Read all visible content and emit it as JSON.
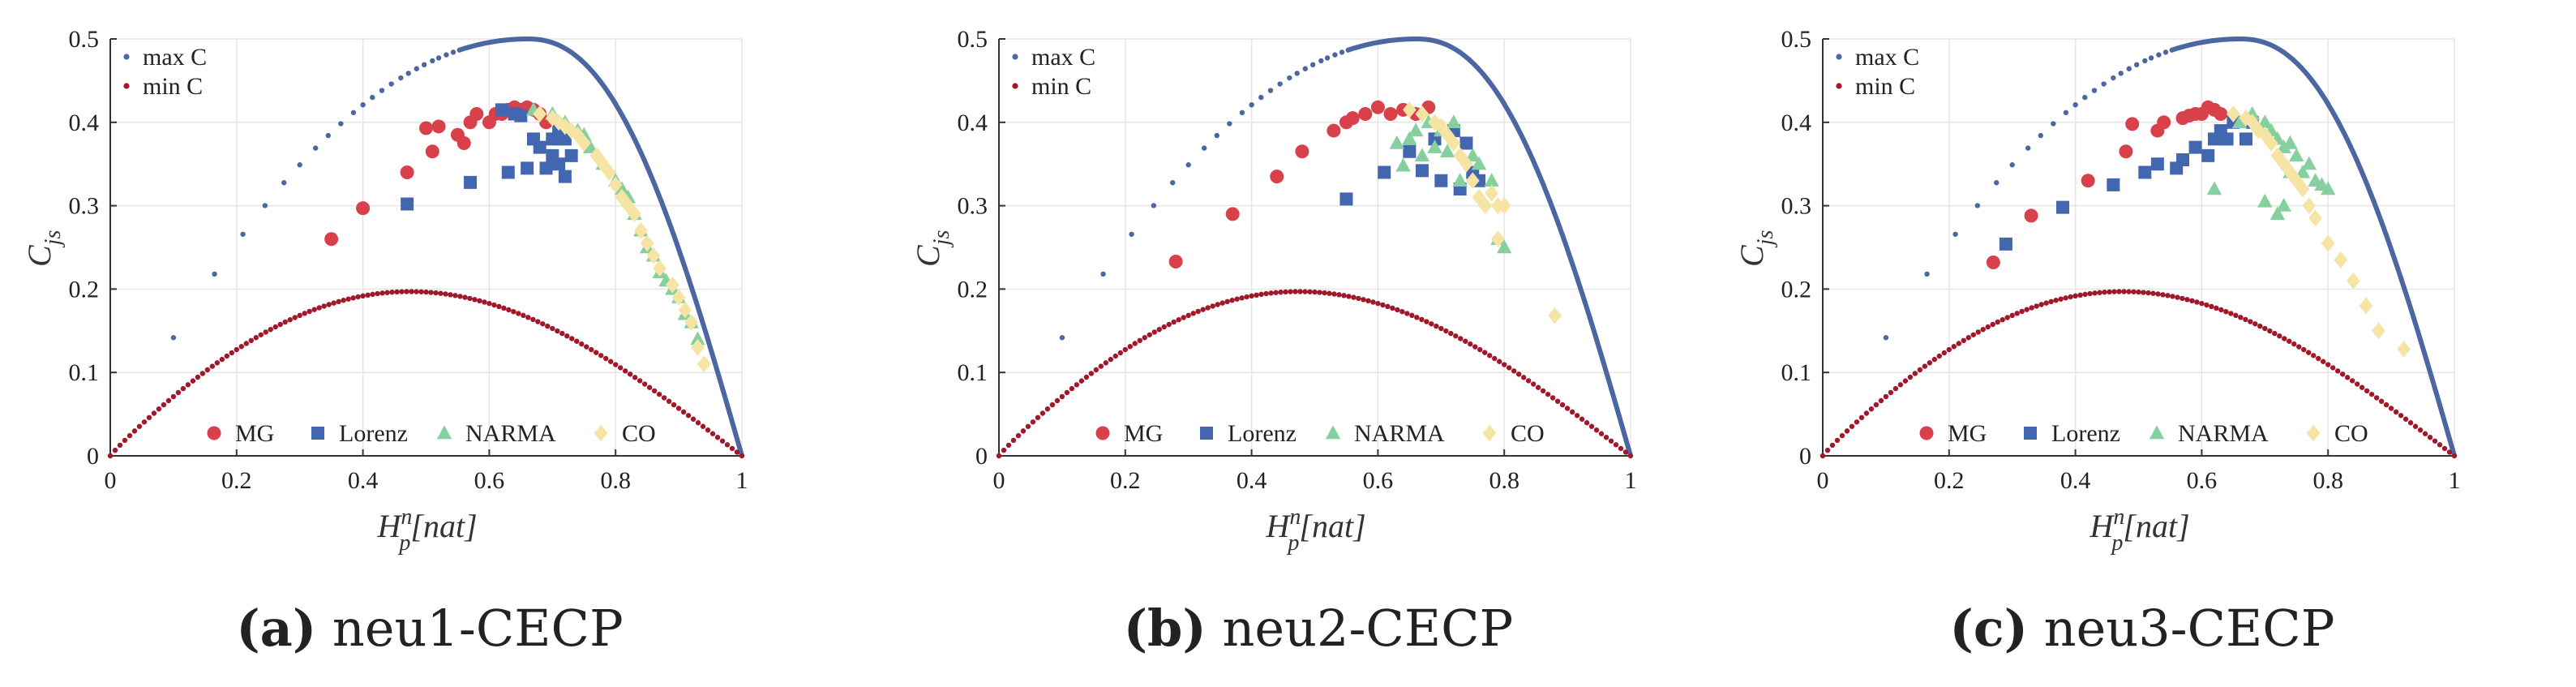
{
  "colors": {
    "max_c": "#4C66A2",
    "min_c": "#A0182A",
    "MG": "#D8404A",
    "Lorenz": "#4366B0",
    "NARMA": "#86CF9E",
    "CO": "#F6E4A4",
    "grid": "#e6e6e6",
    "axis": "#333333"
  },
  "chart_data": [
    {
      "type": "scatter",
      "caption_letter": "(a)",
      "caption_text": "neu1-CECP",
      "xlabel_main": "H",
      "xlabel_sup": "n",
      "xlabel_sub": "p",
      "xlabel_tail": "[nat]",
      "ylabel_main": "C",
      "ylabel_sub": "js",
      "xlim": [
        0,
        1
      ],
      "ylim": [
        0,
        0.5
      ],
      "xticks": [
        "0",
        "0.2",
        "0.4",
        "0.6",
        "0.8",
        "1"
      ],
      "yticks": [
        "0",
        "0.1",
        "0.2",
        "0.3",
        "0.4",
        "0.5"
      ],
      "boundary_legend": [
        "max C",
        "min C"
      ],
      "legend": [
        "MG",
        "Lorenz",
        "NARMA",
        "CO"
      ],
      "series": [
        {
          "name": "MG",
          "marker": "circle",
          "points": [
            [
              0.35,
              0.26
            ],
            [
              0.4,
              0.297
            ],
            [
              0.47,
              0.34
            ],
            [
              0.5,
              0.393
            ],
            [
              0.51,
              0.365
            ],
            [
              0.52,
              0.395
            ],
            [
              0.55,
              0.385
            ],
            [
              0.56,
              0.375
            ],
            [
              0.57,
              0.4
            ],
            [
              0.58,
              0.41
            ],
            [
              0.6,
              0.4
            ],
            [
              0.61,
              0.41
            ],
            [
              0.62,
              0.41
            ],
            [
              0.63,
              0.415
            ],
            [
              0.64,
              0.418
            ],
            [
              0.65,
              0.415
            ],
            [
              0.66,
              0.418
            ],
            [
              0.67,
              0.415
            ],
            [
              0.68,
              0.41
            ],
            [
              0.69,
              0.4
            ]
          ]
        },
        {
          "name": "Lorenz",
          "marker": "square",
          "points": [
            [
              0.47,
              0.302
            ],
            [
              0.57,
              0.328
            ],
            [
              0.62,
              0.415
            ],
            [
              0.63,
              0.34
            ],
            [
              0.64,
              0.41
            ],
            [
              0.65,
              0.408
            ],
            [
              0.66,
              0.345
            ],
            [
              0.67,
              0.38
            ],
            [
              0.68,
              0.37
            ],
            [
              0.69,
              0.345
            ],
            [
              0.7,
              0.36
            ],
            [
              0.7,
              0.38
            ],
            [
              0.71,
              0.35
            ],
            [
              0.71,
              0.39
            ],
            [
              0.72,
              0.335
            ],
            [
              0.72,
              0.38
            ],
            [
              0.73,
              0.36
            ]
          ]
        },
        {
          "name": "NARMA",
          "marker": "triangle",
          "points": [
            [
              0.67,
              0.415
            ],
            [
              0.7,
              0.41
            ],
            [
              0.72,
              0.4
            ],
            [
              0.74,
              0.39
            ],
            [
              0.75,
              0.385
            ],
            [
              0.76,
              0.37
            ],
            [
              0.78,
              0.35
            ],
            [
              0.8,
              0.33
            ],
            [
              0.81,
              0.32
            ],
            [
              0.82,
              0.31
            ],
            [
              0.83,
              0.29
            ],
            [
              0.84,
              0.27
            ],
            [
              0.85,
              0.25
            ],
            [
              0.86,
              0.24
            ],
            [
              0.87,
              0.22
            ],
            [
              0.88,
              0.21
            ],
            [
              0.89,
              0.2
            ],
            [
              0.9,
              0.19
            ],
            [
              0.91,
              0.17
            ],
            [
              0.92,
              0.16
            ],
            [
              0.93,
              0.14
            ]
          ]
        },
        {
          "name": "CO",
          "marker": "diamond",
          "points": [
            [
              0.68,
              0.41
            ],
            [
              0.7,
              0.405
            ],
            [
              0.71,
              0.4
            ],
            [
              0.72,
              0.395
            ],
            [
              0.73,
              0.39
            ],
            [
              0.74,
              0.385
            ],
            [
              0.75,
              0.375
            ],
            [
              0.77,
              0.36
            ],
            [
              0.78,
              0.35
            ],
            [
              0.79,
              0.34
            ],
            [
              0.8,
              0.325
            ],
            [
              0.81,
              0.31
            ],
            [
              0.82,
              0.3
            ],
            [
              0.83,
              0.29
            ],
            [
              0.84,
              0.27
            ],
            [
              0.85,
              0.255
            ],
            [
              0.86,
              0.24
            ],
            [
              0.87,
              0.225
            ],
            [
              0.89,
              0.205
            ],
            [
              0.9,
              0.19
            ],
            [
              0.91,
              0.175
            ],
            [
              0.92,
              0.16
            ],
            [
              0.93,
              0.13
            ],
            [
              0.94,
              0.11
            ]
          ]
        }
      ]
    },
    {
      "type": "scatter",
      "caption_letter": "(b)",
      "caption_text": "neu2-CECP",
      "xlabel_main": "H",
      "xlabel_sup": "n",
      "xlabel_sub": "p",
      "xlabel_tail": "[nat]",
      "ylabel_main": "C",
      "ylabel_sub": "js",
      "xlim": [
        0,
        1
      ],
      "ylim": [
        0,
        0.5
      ],
      "xticks": [
        "0",
        "0.2",
        "0.4",
        "0.6",
        "0.8",
        "1"
      ],
      "yticks": [
        "0",
        "0.1",
        "0.2",
        "0.3",
        "0.4",
        "0.5"
      ],
      "boundary_legend": [
        "max C",
        "min C"
      ],
      "legend": [
        "MG",
        "Lorenz",
        "NARMA",
        "CO"
      ],
      "series": [
        {
          "name": "MG",
          "marker": "circle",
          "points": [
            [
              0.28,
              0.233
            ],
            [
              0.37,
              0.29
            ],
            [
              0.44,
              0.335
            ],
            [
              0.48,
              0.365
            ],
            [
              0.53,
              0.39
            ],
            [
              0.55,
              0.4
            ],
            [
              0.56,
              0.405
            ],
            [
              0.58,
              0.41
            ],
            [
              0.6,
              0.418
            ],
            [
              0.62,
              0.41
            ],
            [
              0.64,
              0.415
            ],
            [
              0.66,
              0.41
            ],
            [
              0.68,
              0.418
            ]
          ]
        },
        {
          "name": "Lorenz",
          "marker": "square",
          "points": [
            [
              0.55,
              0.308
            ],
            [
              0.61,
              0.34
            ],
            [
              0.65,
              0.365
            ],
            [
              0.67,
              0.342
            ],
            [
              0.69,
              0.38
            ],
            [
              0.7,
              0.33
            ],
            [
              0.72,
              0.39
            ],
            [
              0.73,
              0.32
            ],
            [
              0.74,
              0.375
            ],
            [
              0.75,
              0.34
            ],
            [
              0.76,
              0.33
            ]
          ]
        },
        {
          "name": "NARMA",
          "marker": "triangle",
          "points": [
            [
              0.63,
              0.375
            ],
            [
              0.64,
              0.348
            ],
            [
              0.65,
              0.38
            ],
            [
              0.66,
              0.39
            ],
            [
              0.67,
              0.36
            ],
            [
              0.68,
              0.4
            ],
            [
              0.69,
              0.37
            ],
            [
              0.7,
              0.39
            ],
            [
              0.71,
              0.365
            ],
            [
              0.72,
              0.4
            ],
            [
              0.73,
              0.33
            ],
            [
              0.75,
              0.36
            ],
            [
              0.76,
              0.35
            ],
            [
              0.78,
              0.33
            ],
            [
              0.79,
              0.26
            ],
            [
              0.8,
              0.25
            ]
          ]
        },
        {
          "name": "CO",
          "marker": "diamond",
          "points": [
            [
              0.65,
              0.415
            ],
            [
              0.67,
              0.41
            ],
            [
              0.69,
              0.4
            ],
            [
              0.7,
              0.395
            ],
            [
              0.71,
              0.385
            ],
            [
              0.72,
              0.375
            ],
            [
              0.73,
              0.36
            ],
            [
              0.74,
              0.35
            ],
            [
              0.75,
              0.33
            ],
            [
              0.76,
              0.31
            ],
            [
              0.77,
              0.3
            ],
            [
              0.78,
              0.315
            ],
            [
              0.79,
              0.3
            ],
            [
              0.8,
              0.3
            ],
            [
              0.79,
              0.26
            ],
            [
              0.88,
              0.168
            ]
          ]
        }
      ]
    },
    {
      "type": "scatter",
      "caption_letter": "(c)",
      "caption_text": "neu3-CECP",
      "xlabel_main": "H",
      "xlabel_sup": "n",
      "xlabel_sub": "p",
      "xlabel_tail": "[nat]",
      "ylabel_main": "C",
      "ylabel_sub": "js",
      "xlim": [
        0,
        1
      ],
      "ylim": [
        0,
        0.5
      ],
      "xticks": [
        "0",
        "0.2",
        "0.4",
        "0.6",
        "0.8",
        "1"
      ],
      "yticks": [
        "0",
        "0.1",
        "0.2",
        "0.3",
        "0.4",
        "0.5"
      ],
      "boundary_legend": [
        "max C",
        "min C"
      ],
      "legend": [
        "MG",
        "Lorenz",
        "NARMA",
        "CO"
      ],
      "series": [
        {
          "name": "MG",
          "marker": "circle",
          "points": [
            [
              0.27,
              0.232
            ],
            [
              0.33,
              0.288
            ],
            [
              0.42,
              0.33
            ],
            [
              0.48,
              0.365
            ],
            [
              0.49,
              0.398
            ],
            [
              0.53,
              0.39
            ],
            [
              0.54,
              0.4
            ],
            [
              0.57,
              0.405
            ],
            [
              0.58,
              0.408
            ],
            [
              0.59,
              0.41
            ],
            [
              0.6,
              0.41
            ],
            [
              0.61,
              0.418
            ],
            [
              0.62,
              0.415
            ],
            [
              0.63,
              0.41
            ]
          ]
        },
        {
          "name": "Lorenz",
          "marker": "square",
          "points": [
            [
              0.29,
              0.254
            ],
            [
              0.38,
              0.298
            ],
            [
              0.46,
              0.325
            ],
            [
              0.51,
              0.34
            ],
            [
              0.53,
              0.35
            ],
            [
              0.56,
              0.345
            ],
            [
              0.57,
              0.355
            ],
            [
              0.59,
              0.37
            ],
            [
              0.61,
              0.36
            ],
            [
              0.62,
              0.38
            ],
            [
              0.63,
              0.39
            ],
            [
              0.64,
              0.38
            ],
            [
              0.65,
              0.4
            ],
            [
              0.67,
              0.38
            ],
            [
              0.68,
              0.4
            ]
          ]
        },
        {
          "name": "NARMA",
          "marker": "triangle",
          "points": [
            [
              0.62,
              0.32
            ],
            [
              0.66,
              0.4
            ],
            [
              0.68,
              0.41
            ],
            [
              0.7,
              0.4
            ],
            [
              0.71,
              0.39
            ],
            [
              0.72,
              0.38
            ],
            [
              0.73,
              0.37
            ],
            [
              0.74,
              0.375
            ],
            [
              0.75,
              0.36
            ],
            [
              0.76,
              0.34
            ],
            [
              0.77,
              0.35
            ],
            [
              0.78,
              0.33
            ],
            [
              0.79,
              0.325
            ],
            [
              0.8,
              0.32
            ],
            [
              0.73,
              0.3
            ],
            [
              0.72,
              0.29
            ],
            [
              0.7,
              0.305
            ],
            [
              0.74,
              0.34
            ]
          ]
        },
        {
          "name": "CO",
          "marker": "diamond",
          "points": [
            [
              0.65,
              0.41
            ],
            [
              0.67,
              0.405
            ],
            [
              0.68,
              0.4
            ],
            [
              0.69,
              0.39
            ],
            [
              0.7,
              0.385
            ],
            [
              0.71,
              0.375
            ],
            [
              0.72,
              0.36
            ],
            [
              0.73,
              0.35
            ],
            [
              0.74,
              0.34
            ],
            [
              0.75,
              0.33
            ],
            [
              0.76,
              0.32
            ],
            [
              0.77,
              0.3
            ],
            [
              0.78,
              0.285
            ],
            [
              0.8,
              0.255
            ],
            [
              0.82,
              0.235
            ],
            [
              0.84,
              0.21
            ],
            [
              0.86,
              0.18
            ],
            [
              0.88,
              0.15
            ],
            [
              0.92,
              0.128
            ]
          ]
        }
      ]
    }
  ]
}
